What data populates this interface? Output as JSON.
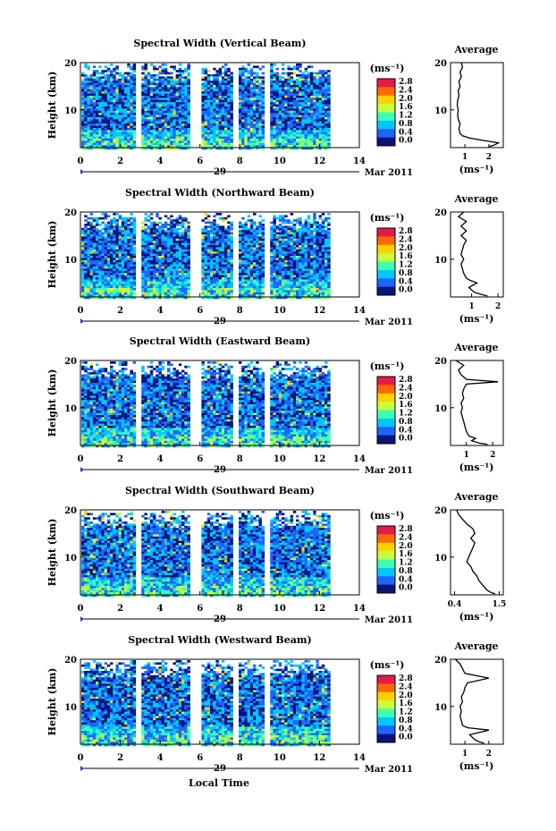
{
  "chart_data": {
    "type": "heatmap",
    "colorbar": {
      "unit": "(ms⁻¹)",
      "ticks": [
        "2.8",
        "2.4",
        "2.0",
        "1.6",
        "1.2",
        "0.8",
        "0.4",
        "0.0"
      ],
      "colors": [
        "#e6194b",
        "#ff6a00",
        "#ffd200",
        "#c8ff3c",
        "#3cffb4",
        "#00c8ff",
        "#1e64ff",
        "#0a1478"
      ]
    },
    "x": {
      "ticks": [
        "0",
        "2",
        "4",
        "6",
        "8",
        "10",
        "12",
        "14"
      ],
      "range": [
        0,
        14
      ],
      "date_label": "29",
      "date_suffix": "Mar 2011",
      "xlabel": "Local Time"
    },
    "y": {
      "ylabel": "Height (km)",
      "ticks": [
        "10",
        "20"
      ],
      "range": [
        2,
        20
      ]
    },
    "gaps_hours": [
      [
        2.7,
        3.0
      ],
      [
        5.4,
        6.0
      ],
      [
        7.6,
        7.9
      ],
      [
        9.1,
        9.5
      ],
      [
        12.4,
        14
      ]
    ],
    "panels": [
      {
        "title": "Spectral Width (Vertical Beam)",
        "avg_title": "Average",
        "avg_xticks": [
          "1",
          "2"
        ],
        "avg_xlabel": "(ms⁻¹)",
        "avg_xrange": [
          0.4,
          2.6
        ],
        "avg_tick_values": [
          1,
          2
        ],
        "avg_profile": [
          [
            2.2,
            2.0
          ],
          [
            2.5,
            2.2
          ],
          [
            3,
            2.4
          ],
          [
            3.5,
            1.8
          ],
          [
            4,
            1.2
          ],
          [
            4.5,
            0.9
          ],
          [
            5,
            0.8
          ],
          [
            6,
            0.75
          ],
          [
            7,
            0.8
          ],
          [
            8,
            0.72
          ],
          [
            9,
            0.7
          ],
          [
            10,
            0.72
          ],
          [
            11,
            0.68
          ],
          [
            12,
            0.7
          ],
          [
            13,
            0.75
          ],
          [
            14,
            0.72
          ],
          [
            15,
            0.8
          ],
          [
            16,
            0.75
          ],
          [
            17,
            0.85
          ],
          [
            18,
            0.8
          ],
          [
            19,
            0.9
          ],
          [
            20,
            0.85
          ]
        ]
      },
      {
        "title": "Spectral Width (Northward Beam)",
        "avg_title": "Average",
        "avg_xticks": [
          "1",
          "2"
        ],
        "avg_xlabel": "(ms⁻¹)",
        "avg_xrange": [
          0.2,
          2.2
        ],
        "avg_tick_values": [
          1,
          2
        ],
        "avg_profile": [
          [
            2.2,
            1.6
          ],
          [
            2.5,
            1.4
          ],
          [
            3,
            1.1
          ],
          [
            3.5,
            1.0
          ],
          [
            4,
            0.9
          ],
          [
            5,
            1.2
          ],
          [
            5.5,
            0.95
          ],
          [
            6,
            0.8
          ],
          [
            7,
            0.7
          ],
          [
            8,
            0.65
          ],
          [
            9,
            0.6
          ],
          [
            10,
            0.7
          ],
          [
            11,
            0.6
          ],
          [
            12,
            0.65
          ],
          [
            13,
            0.7
          ],
          [
            14,
            0.8
          ],
          [
            15,
            0.6
          ],
          [
            16,
            0.8
          ],
          [
            17,
            0.6
          ],
          [
            18,
            0.8
          ],
          [
            19,
            0.5
          ],
          [
            20,
            0.7
          ]
        ]
      },
      {
        "title": "Spectral Width (Eastward Beam)",
        "avg_title": "Average",
        "avg_xticks": [
          "1",
          "2"
        ],
        "avg_xlabel": "(ms⁻¹)",
        "avg_xrange": [
          0.4,
          2.4
        ],
        "avg_tick_values": [
          1,
          2
        ],
        "avg_profile": [
          [
            2.2,
            1.8
          ],
          [
            2.5,
            1.5
          ],
          [
            3,
            1.2
          ],
          [
            3.5,
            1.35
          ],
          [
            4,
            1.1
          ],
          [
            5,
            1.0
          ],
          [
            6,
            0.95
          ],
          [
            7,
            0.9
          ],
          [
            8,
            0.85
          ],
          [
            9,
            0.8
          ],
          [
            10,
            0.85
          ],
          [
            11,
            0.8
          ],
          [
            12,
            0.9
          ],
          [
            13,
            0.85
          ],
          [
            14,
            0.9
          ],
          [
            15,
            1.0
          ],
          [
            15.5,
            2.2
          ],
          [
            16,
            1.0
          ],
          [
            17,
            0.8
          ],
          [
            18,
            0.7
          ],
          [
            19,
            0.9
          ],
          [
            20,
            0.6
          ]
        ]
      },
      {
        "title": "Spectral Width (Southward Beam)",
        "avg_title": "Average",
        "avg_xticks": [
          "0.4",
          "1.5"
        ],
        "avg_xlabel": "(ms⁻¹)",
        "avg_xrange": [
          0.3,
          1.6
        ],
        "avg_tick_values": [
          0.4,
          1.5
        ],
        "avg_profile": [
          [
            2.2,
            1.4
          ],
          [
            2.5,
            1.3
          ],
          [
            3,
            1.2
          ],
          [
            4,
            1.1
          ],
          [
            5,
            1.0
          ],
          [
            6,
            0.95
          ],
          [
            7,
            0.85
          ],
          [
            8,
            0.8
          ],
          [
            9,
            0.7
          ],
          [
            10,
            0.75
          ],
          [
            11,
            0.8
          ],
          [
            12,
            0.85
          ],
          [
            13,
            0.9
          ],
          [
            14,
            0.8
          ],
          [
            15,
            0.9
          ],
          [
            16,
            0.85
          ],
          [
            17,
            0.7
          ],
          [
            18,
            0.6
          ],
          [
            19,
            0.5
          ],
          [
            20,
            0.45
          ]
        ]
      },
      {
        "title": "Spectral Width (Westward Beam)",
        "avg_title": "Average",
        "avg_xticks": [
          "1",
          "2"
        ],
        "avg_xlabel": "(ms⁻¹)",
        "avg_xrange": [
          0.4,
          2.6
        ],
        "avg_tick_values": [
          1,
          2
        ],
        "avg_profile": [
          [
            2.2,
            1.8
          ],
          [
            2.5,
            1.6
          ],
          [
            3,
            1.4
          ],
          [
            4,
            1.2
          ],
          [
            5,
            2.0
          ],
          [
            5.5,
            1.1
          ],
          [
            6,
            0.9
          ],
          [
            7,
            0.85
          ],
          [
            8,
            0.8
          ],
          [
            9,
            0.85
          ],
          [
            10,
            0.8
          ],
          [
            11,
            0.9
          ],
          [
            12,
            0.85
          ],
          [
            13,
            0.95
          ],
          [
            14,
            1.0
          ],
          [
            15,
            1.1
          ],
          [
            16,
            2.0
          ],
          [
            17,
            1.0
          ],
          [
            18,
            0.9
          ],
          [
            19,
            0.8
          ],
          [
            20,
            0.6
          ]
        ]
      }
    ]
  }
}
